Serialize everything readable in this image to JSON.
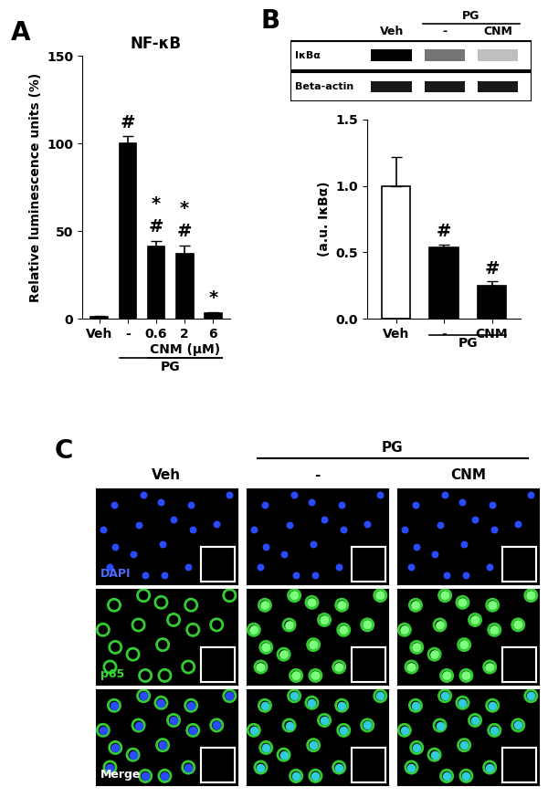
{
  "panels": [
    "A",
    "B",
    "C"
  ],
  "chart_data": [
    {
      "type": "bar",
      "title": "NF-κB",
      "y_label": "Relative luminescence units (%)",
      "categories": [
        "Veh",
        "-",
        "0.6",
        "2",
        "6"
      ],
      "values": [
        1,
        100,
        41,
        37,
        3
      ],
      "errors": [
        0.5,
        4,
        3.5,
        5,
        1
      ],
      "color": "#000000",
      "ylim": [
        0,
        150
      ],
      "yticks": [
        0,
        50,
        100,
        150
      ],
      "significance": [
        null,
        [
          "#"
        ],
        [
          "*",
          "#"
        ],
        [
          "*",
          "#"
        ],
        [
          "*"
        ]
      ],
      "groups": [
        {
          "label": "CNM (μM)",
          "categories": [
            "0.6",
            "2",
            "6"
          ]
        },
        {
          "label": "PG",
          "categories": [
            "-",
            "0.6",
            "2",
            "6"
          ]
        }
      ]
    },
    {
      "type": "bar",
      "y_label": "(a.u. IκBα)",
      "categories": [
        "Veh",
        "-",
        "CNM"
      ],
      "values": [
        1.0,
        0.54,
        0.25
      ],
      "errors": [
        0.22,
        0.02,
        0.03
      ],
      "colors": [
        "#ffffff",
        "#000000",
        "#000000"
      ],
      "ylim": [
        0,
        1.5
      ],
      "yticks": [
        {
          "value": 0,
          "label": "0.0"
        },
        {
          "value": 0.5,
          "label": "0.5"
        },
        {
          "value": 1,
          "label": "1.0"
        },
        {
          "value": 1.5,
          "label": "1.5"
        }
      ],
      "significance": [
        null,
        [
          "#"
        ],
        [
          "#"
        ]
      ],
      "groups": [
        {
          "label": "PG",
          "categories": [
            "-",
            "CNM"
          ]
        }
      ],
      "blot": {
        "columns": [
          "Veh",
          "-",
          "CNM"
        ],
        "group": {
          "label": "PG",
          "columns": [
            "-",
            "CNM"
          ]
        },
        "rows": [
          "IκBα",
          "Beta-actin"
        ]
      }
    }
  ],
  "images": {
    "columns": [
      "Veh",
      "-",
      "CNM"
    ],
    "group": {
      "label": "PG",
      "columns": [
        "-",
        "CNM"
      ]
    },
    "rows": [
      "DAPI",
      "p65",
      "Merge"
    ]
  }
}
